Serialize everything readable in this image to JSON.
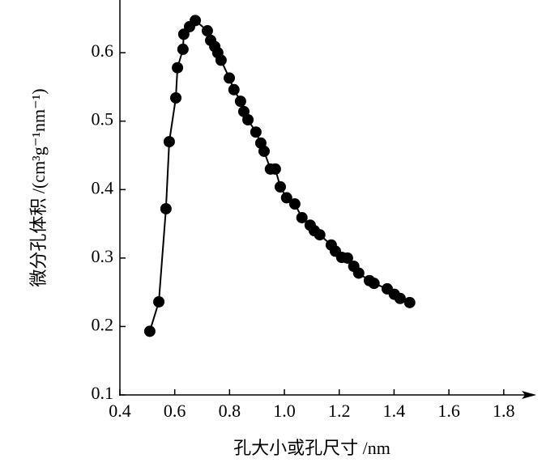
{
  "chart_data": {
    "type": "line",
    "x_label": "孔大小或孔尺寸 /nm",
    "y_label": "微分孔体积 /(cm³g⁻¹nm⁻¹)",
    "x": [
      0.509,
      0.542,
      0.568,
      0.58,
      0.604,
      0.61,
      0.63,
      0.633,
      0.654,
      0.675,
      0.719,
      0.731,
      0.746,
      0.757,
      0.769,
      0.799,
      0.816,
      0.84,
      0.852,
      0.867,
      0.896,
      0.914,
      0.926,
      0.949,
      0.967,
      0.985,
      1.008,
      1.038,
      1.064,
      1.094,
      1.109,
      1.129,
      1.171,
      1.186,
      1.209,
      1.23,
      1.253,
      1.271,
      1.31,
      1.327,
      1.375,
      1.401,
      1.422,
      1.457
    ],
    "values": [
      0.193,
      0.236,
      0.372,
      0.47,
      0.534,
      0.578,
      0.605,
      0.627,
      0.638,
      0.647,
      0.632,
      0.618,
      0.609,
      0.6,
      0.589,
      0.563,
      0.546,
      0.529,
      0.514,
      0.502,
      0.484,
      0.468,
      0.456,
      0.43,
      0.43,
      0.404,
      0.388,
      0.379,
      0.359,
      0.348,
      0.34,
      0.334,
      0.319,
      0.31,
      0.301,
      0.3,
      0.288,
      0.278,
      0.267,
      0.263,
      0.255,
      0.247,
      0.241,
      0.235
    ],
    "color": "#000000",
    "markers": true,
    "xlim": [
      0.4,
      1.91
    ],
    "xticks": [
      0.4,
      0.6,
      0.8,
      {
        "value": 1,
        "label": "1.0"
      },
      1.2,
      1.4,
      1.6,
      1.8
    ],
    "ylim": [
      0.1,
      0.677
    ],
    "yticks": [
      0.1,
      0.2,
      0.3,
      0.4,
      0.5,
      0.6
    ]
  }
}
